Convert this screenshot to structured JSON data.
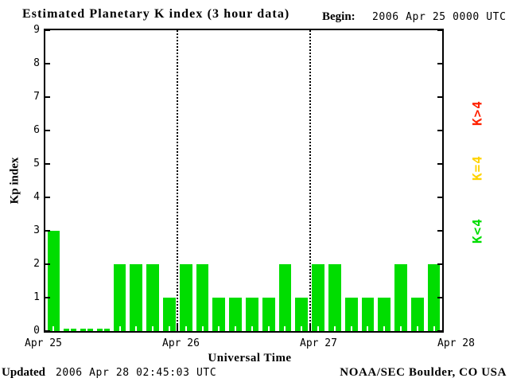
{
  "header": {
    "title": "Estimated Planetary K index (3 hour data)",
    "begin_label": "Begin:",
    "begin_value": "2006 Apr 25 0000 UTC"
  },
  "chart_data": {
    "type": "bar",
    "title": "Estimated Planetary K index (3 hour data)",
    "begin": "2006 Apr 25 0000 UTC",
    "xlabel": "Universal Time",
    "ylabel": "Kp index",
    "ylim": [
      0,
      9
    ],
    "yticks": [
      0,
      1,
      2,
      3,
      4,
      5,
      6,
      7,
      8,
      9
    ],
    "interval_hours": 3,
    "bar_color": "#00dd00",
    "grid": "dotted vertical lines at day boundaries",
    "legend_position": "right",
    "x_tick_labels": [
      "Apr 25",
      "Apr 26",
      "Apr 27",
      "Apr 28"
    ],
    "series": [
      {
        "name": "Apr 25",
        "values": [
          3,
          0,
          0,
          0,
          2,
          2,
          2,
          1
        ]
      },
      {
        "name": "Apr 26",
        "values": [
          2,
          2,
          1,
          1,
          1,
          1,
          2,
          1
        ]
      },
      {
        "name": "Apr 27",
        "values": [
          2,
          2,
          1,
          1,
          1,
          2,
          1,
          2
        ]
      }
    ],
    "legend": [
      {
        "label": "K>4",
        "color": "#ff2200"
      },
      {
        "label": "K=4",
        "color": "#ffd300"
      },
      {
        "label": "K<4",
        "color": "#00dd00"
      }
    ]
  },
  "footer": {
    "updated_label": "Updated",
    "updated_value": "2006 Apr 28 02:45:03 UTC",
    "credit": "NOAA/SEC Boulder, CO USA"
  }
}
